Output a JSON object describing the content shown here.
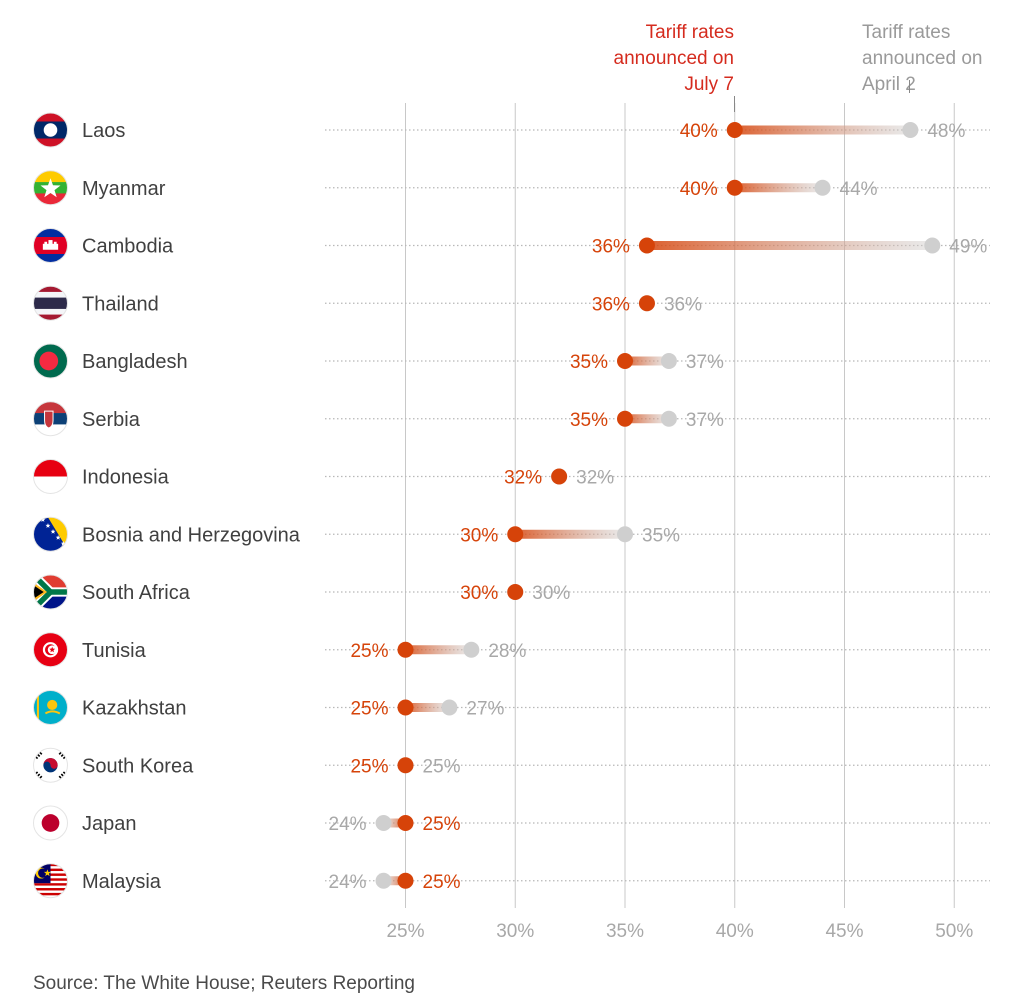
{
  "legend": {
    "new_label": [
      "Tariff rates",
      "announced on",
      "July 7"
    ],
    "old_label": [
      "Tariff rates",
      "announced on",
      "April 2"
    ]
  },
  "source": "Source: The White House; Reuters Reporting",
  "colors": {
    "new": "#d64309",
    "old": "#cfcfcf",
    "gridline": "#c8c8c8",
    "row_dots": "#b8b8b8"
  },
  "chart_data": {
    "type": "dumbbell",
    "x_ticks": [
      25,
      30,
      35,
      40,
      45,
      50
    ],
    "x_tick_labels": [
      "25%",
      "30%",
      "35%",
      "40%",
      "45%",
      "50%"
    ],
    "xlim": [
      22,
      51.5
    ],
    "series": [
      {
        "name": "Tariff rates announced on July 7",
        "key": "new"
      },
      {
        "name": "Tariff rates announced on April 2",
        "key": "old"
      }
    ],
    "rows": [
      {
        "country": "Laos",
        "flag": "laos-flag",
        "new": 40,
        "old": 48,
        "new_label": "40%",
        "old_label": "48%"
      },
      {
        "country": "Myanmar",
        "flag": "myanmar-flag",
        "new": 40,
        "old": 44,
        "new_label": "40%",
        "old_label": "44%"
      },
      {
        "country": "Cambodia",
        "flag": "cambodia-flag",
        "new": 36,
        "old": 49,
        "new_label": "36%",
        "old_label": "49%"
      },
      {
        "country": "Thailand",
        "flag": "thailand-flag",
        "new": 36,
        "old": 36,
        "new_label": "36%",
        "old_label": "36%"
      },
      {
        "country": "Bangladesh",
        "flag": "bangladesh-flag",
        "new": 35,
        "old": 37,
        "new_label": "35%",
        "old_label": "37%"
      },
      {
        "country": "Serbia",
        "flag": "serbia-flag",
        "new": 35,
        "old": 37,
        "new_label": "35%",
        "old_label": "37%"
      },
      {
        "country": "Indonesia",
        "flag": "indonesia-flag",
        "new": 32,
        "old": 32,
        "new_label": "32%",
        "old_label": "32%"
      },
      {
        "country": "Bosnia and Herzegovina",
        "flag": "bosnia-flag",
        "new": 30,
        "old": 35,
        "new_label": "30%",
        "old_label": "35%"
      },
      {
        "country": "South Africa",
        "flag": "south-africa-flag",
        "new": 30,
        "old": 30,
        "new_label": "30%",
        "old_label": "30%"
      },
      {
        "country": "Tunisia",
        "flag": "tunisia-flag",
        "new": 25,
        "old": 28,
        "new_label": "25%",
        "old_label": "28%"
      },
      {
        "country": "Kazakhstan",
        "flag": "kazakhstan-flag",
        "new": 25,
        "old": 27,
        "new_label": "25%",
        "old_label": "27%"
      },
      {
        "country": "South Korea",
        "flag": "south-korea-flag",
        "new": 25,
        "old": 25,
        "new_label": "25%",
        "old_label": "25%"
      },
      {
        "country": "Japan",
        "flag": "japan-flag",
        "new": 25,
        "old": 24,
        "new_label": "25%",
        "old_label": "24%"
      },
      {
        "country": "Malaysia",
        "flag": "malaysia-flag",
        "new": 25,
        "old": 24,
        "new_label": "25%",
        "old_label": "24%"
      }
    ]
  }
}
